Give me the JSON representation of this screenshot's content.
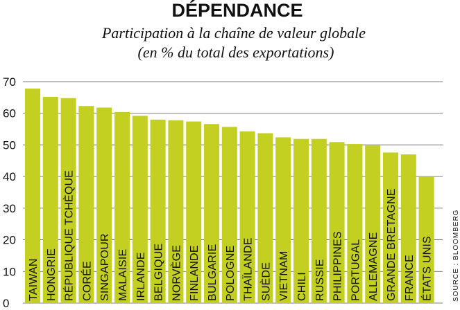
{
  "chart_data": {
    "type": "bar",
    "title": "DÉPENDANCE",
    "subtitle_line1": "Participation à la chaîne de valeur globale",
    "subtitle_line2": "(en % du total des exportations)",
    "source": "SOURCE : BLOOMBERG",
    "ylim": [
      0,
      70
    ],
    "yticks": [
      0,
      10,
      20,
      30,
      40,
      50,
      60,
      70
    ],
    "grid": true,
    "bar_color": "#c3cf21",
    "categories": [
      "TAIWAN",
      "HONGRIE",
      "RÉPUBLIQUE TCHÈQUE",
      "CORÉE",
      "SINGAPOUR",
      "MALAISIE",
      "IRLANDE",
      "BELGIQUE",
      "NORVÈGE",
      "FINLANDE",
      "BULGARIE",
      "POLOGNE",
      "THAÏLANDE",
      "SUÈDE",
      "VIETNAM",
      "CHILI",
      "RUSSIE",
      "PHILIPPINES",
      "PORTUGAL",
      "ALLEMAGNE",
      "GRANDE BRETAGNE",
      "FRANCE",
      "ÉTATS UNIS"
    ],
    "values": [
      67.8,
      65.2,
      64.8,
      62.3,
      61.8,
      60.4,
      59.2,
      58.0,
      57.8,
      57.4,
      56.6,
      55.7,
      54.3,
      53.7,
      52.4,
      51.9,
      51.9,
      50.9,
      50.3,
      49.8,
      47.6,
      47.0,
      40.0
    ]
  }
}
